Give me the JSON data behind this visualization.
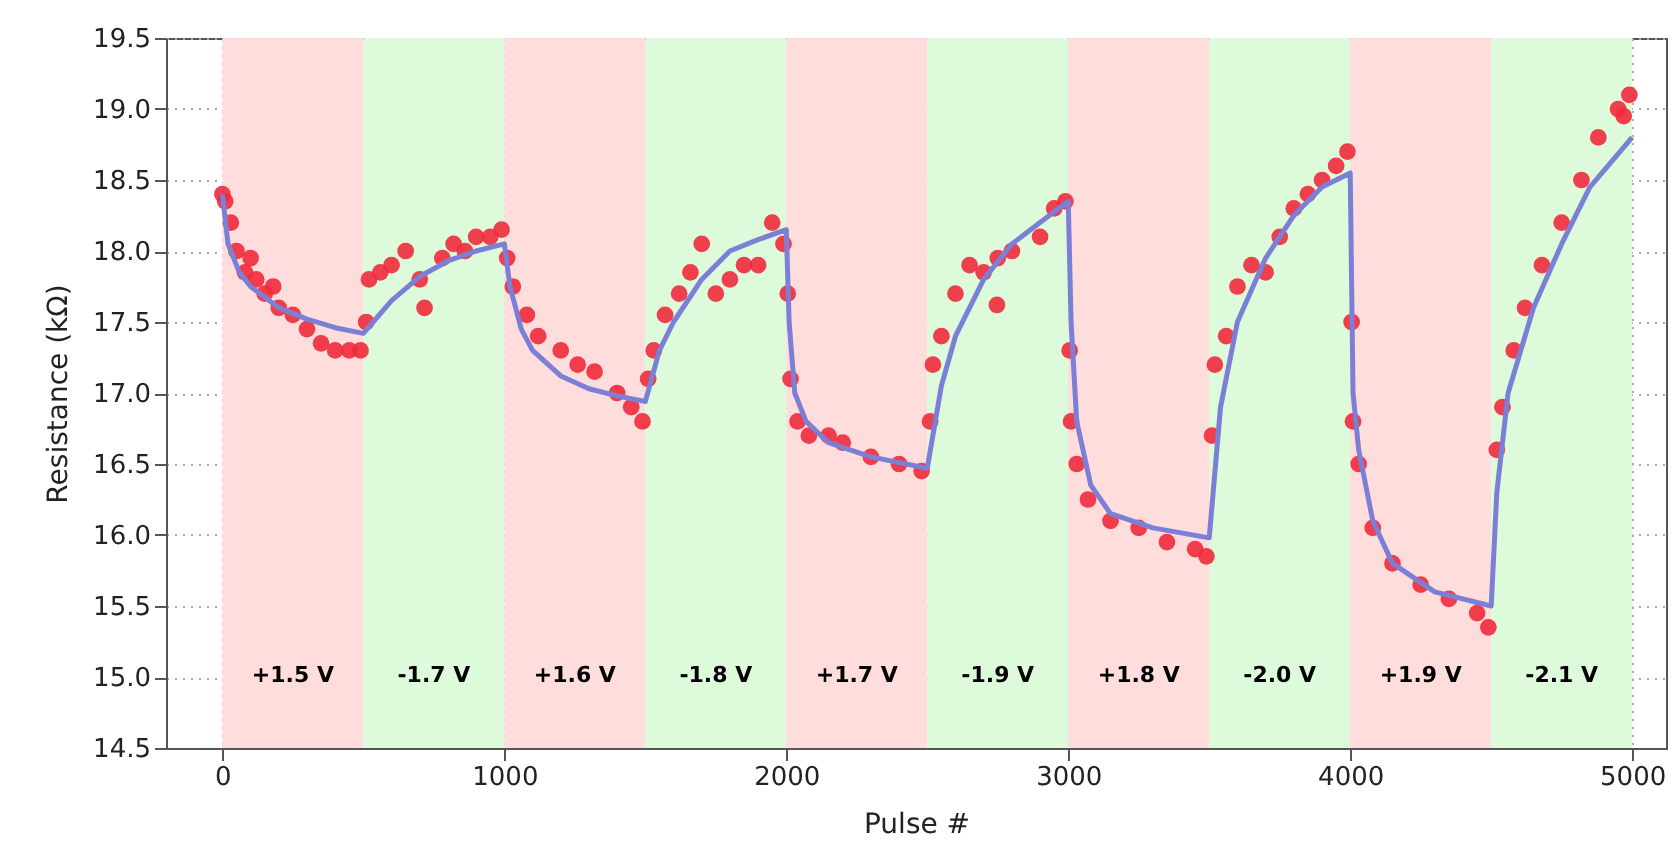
{
  "chart_data": {
    "type": "scatter",
    "xlabel": "Pulse #",
    "ylabel": "Resistance (kΩ)",
    "xlim": [
      -200,
      5120
    ],
    "xticks": [
      0,
      1000,
      2000,
      3000,
      4000,
      5000
    ],
    "ylim": [
      14.5,
      19.5
    ],
    "yticks": [
      14.5,
      {
        "value": 15,
        "label": "15.0"
      },
      15.5,
      {
        "value": 16,
        "label": "16.0"
      },
      16.5,
      {
        "value": 17,
        "label": "17.0"
      },
      17.5,
      {
        "value": 18,
        "label": "18.0"
      },
      18.5,
      {
        "value": 19,
        "label": "19.0"
      },
      19.5
    ],
    "grid": true,
    "line_style": "solid",
    "bands": [
      {
        "axis": "x",
        "from": 0,
        "to": 500,
        "label": "+1.5 V",
        "color": "#ffdddd"
      },
      {
        "axis": "x",
        "from": 500,
        "to": 1000,
        "label": "-1.7 V",
        "color": "#ddfadb"
      },
      {
        "axis": "x",
        "from": 1000,
        "to": 1500,
        "label": "+1.6 V",
        "color": "#ffdddd"
      },
      {
        "axis": "x",
        "from": 1500,
        "to": 2000,
        "label": "-1.8 V",
        "color": "#ddfadb"
      },
      {
        "axis": "x",
        "from": 2000,
        "to": 2500,
        "label": "+1.7 V",
        "color": "#ffdddd"
      },
      {
        "axis": "x",
        "from": 2500,
        "to": 3000,
        "label": "-1.9 V",
        "color": "#ddfadb"
      },
      {
        "axis": "x",
        "from": 3000,
        "to": 3500,
        "label": "+1.8 V",
        "color": "#ffdddd"
      },
      {
        "axis": "x",
        "from": 3500,
        "to": 4000,
        "label": "-2.0 V",
        "color": "#ddfadb"
      },
      {
        "axis": "x",
        "from": 4000,
        "to": 4500,
        "label": "+1.9 V",
        "color": "#ffdddd"
      },
      {
        "axis": "x",
        "from": 4500,
        "to": 5000,
        "label": "-2.1 V",
        "color": "#ddfadb"
      }
    ],
    "series": [
      {
        "type": "scatter",
        "marker": "circle",
        "color": "#ef2a3c",
        "x": [
          0,
          10,
          30,
          50,
          80,
          100,
          120,
          150,
          180,
          200,
          250,
          300,
          350,
          400,
          450,
          490,
          510,
          520,
          560,
          600,
          650,
          700,
          717,
          780,
          820,
          860,
          900,
          950,
          990,
          1010,
          1030,
          1080,
          1120,
          1200,
          1260,
          1320,
          1400,
          1450,
          1490,
          1510,
          1530,
          1570,
          1620,
          1660,
          1700,
          1750,
          1800,
          1850,
          1900,
          1950,
          1990,
          2005,
          2015,
          2040,
          2080,
          2150,
          2200,
          2300,
          2400,
          2480,
          2510,
          2520,
          2550,
          2600,
          2650,
          2700,
          2747,
          2750,
          2800,
          2900,
          2950,
          2990,
          3005,
          3010,
          3030,
          3070,
          3150,
          3250,
          3350,
          3450,
          3490,
          3510,
          3520,
          3560,
          3600,
          3650,
          3700,
          3750,
          3800,
          3850,
          3900,
          3950,
          3990,
          4005,
          4010,
          4030,
          4080,
          4150,
          4250,
          4350,
          4450,
          4490,
          4520,
          4540,
          4580,
          4620,
          4680,
          4750,
          4820,
          4880,
          4950,
          4970,
          4990
        ],
        "values": [
          18.4,
          18.35,
          18.2,
          18.0,
          17.85,
          17.95,
          17.8,
          17.7,
          17.75,
          17.6,
          17.55,
          17.45,
          17.35,
          17.3,
          17.3,
          17.3,
          17.5,
          17.8,
          17.85,
          17.9,
          18.0,
          17.8,
          17.6,
          17.95,
          18.05,
          18.0,
          18.1,
          18.1,
          18.15,
          17.95,
          17.75,
          17.55,
          17.4,
          17.3,
          17.2,
          17.15,
          17.0,
          16.9,
          16.8,
          17.1,
          17.3,
          17.55,
          17.7,
          17.85,
          18.05,
          17.7,
          17.8,
          17.9,
          17.9,
          18.2,
          18.05,
          17.7,
          17.1,
          16.8,
          16.7,
          16.7,
          16.65,
          16.55,
          16.5,
          16.45,
          16.8,
          17.2,
          17.4,
          17.7,
          17.9,
          17.85,
          17.62,
          17.95,
          18.0,
          18.1,
          18.3,
          18.35,
          17.3,
          16.8,
          16.5,
          16.25,
          16.1,
          16.05,
          15.95,
          15.9,
          15.85,
          16.7,
          17.2,
          17.4,
          17.75,
          17.9,
          17.85,
          18.1,
          18.3,
          18.4,
          18.5,
          18.6,
          18.7,
          17.5,
          16.8,
          16.5,
          16.05,
          15.8,
          15.65,
          15.55,
          15.45,
          15.35,
          16.6,
          16.9,
          17.3,
          17.6,
          17.9,
          18.2,
          18.5,
          18.8,
          19.0,
          18.95,
          19.1
        ]
      },
      {
        "type": "line",
        "color": "#7b7fd6",
        "x": [
          0,
          20,
          60,
          100,
          200,
          300,
          400,
          500,
          600,
          700,
          800,
          900,
          1000,
          1020,
          1060,
          1100,
          1200,
          1300,
          1400,
          1500,
          1550,
          1600,
          1700,
          1800,
          1900,
          2000,
          2010,
          2030,
          2070,
          2150,
          2300,
          2500,
          2550,
          2600,
          2700,
          2800,
          2900,
          3000,
          3010,
          3030,
          3080,
          3150,
          3300,
          3500,
          3540,
          3600,
          3700,
          3800,
          3900,
          4000,
          4010,
          4030,
          4080,
          4150,
          4300,
          4500,
          4520,
          4560,
          4650,
          4750,
          4850,
          5000
        ],
        "values": [
          18.4,
          18.05,
          17.85,
          17.75,
          17.6,
          17.52,
          17.46,
          17.42,
          17.65,
          17.82,
          17.93,
          18.0,
          18.05,
          17.75,
          17.45,
          17.3,
          17.12,
          17.03,
          16.98,
          16.94,
          17.3,
          17.5,
          17.8,
          18.0,
          18.08,
          18.15,
          17.5,
          17.0,
          16.8,
          16.65,
          16.55,
          16.47,
          17.05,
          17.4,
          17.8,
          18.05,
          18.2,
          18.35,
          17.5,
          16.8,
          16.35,
          16.15,
          16.05,
          15.98,
          16.9,
          17.5,
          17.95,
          18.25,
          18.45,
          18.55,
          17.0,
          16.6,
          16.1,
          15.8,
          15.6,
          15.5,
          16.3,
          17.0,
          17.6,
          18.05,
          18.45,
          18.8
        ]
      }
    ]
  }
}
